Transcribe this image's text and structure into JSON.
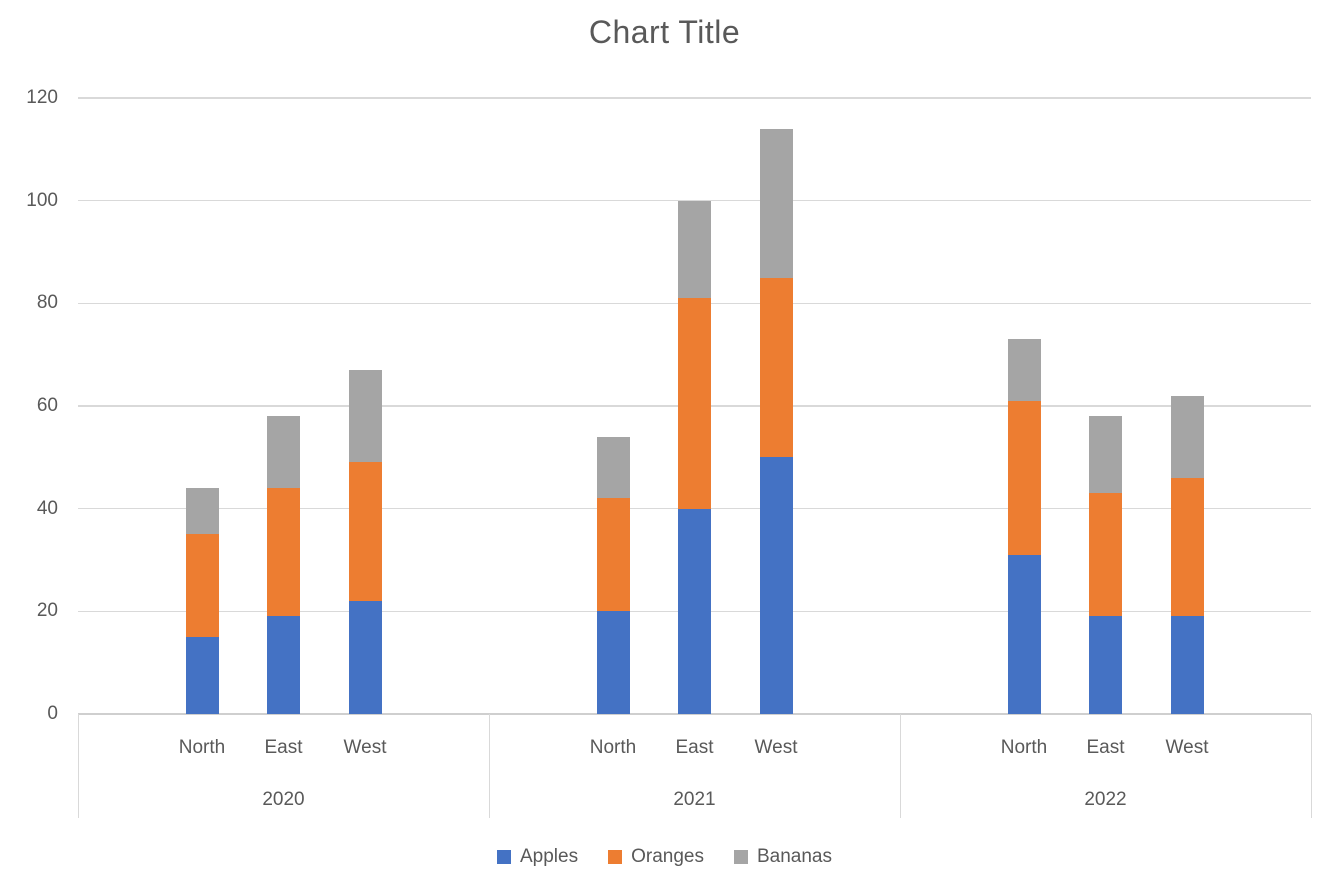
{
  "chart_data": {
    "type": "bar",
    "stacked": true,
    "title": "Chart Title",
    "groups": [
      "2020",
      "2021",
      "2022"
    ],
    "categories": [
      "North",
      "East",
      "West"
    ],
    "series": [
      {
        "name": "Apples",
        "color": "#4472C4",
        "values": [
          [
            15,
            19,
            22
          ],
          [
            20,
            40,
            50
          ],
          [
            31,
            19,
            19
          ]
        ]
      },
      {
        "name": "Oranges",
        "color": "#ED7D31",
        "values": [
          [
            20,
            25,
            27
          ],
          [
            22,
            41,
            35
          ],
          [
            30,
            24,
            27
          ]
        ]
      },
      {
        "name": "Bananas",
        "color": "#A5A5A5",
        "values": [
          [
            9,
            14,
            18
          ],
          [
            12,
            19,
            29
          ],
          [
            12,
            15,
            16
          ]
        ]
      }
    ],
    "stack_totals": [
      [
        44,
        58,
        67
      ],
      [
        54,
        100,
        114
      ],
      [
        73,
        58,
        62
      ]
    ],
    "y_axis": {
      "min": 0,
      "max": 120,
      "step": 20,
      "ticks": [
        "0",
        "20",
        "40",
        "60",
        "80",
        "100",
        "120"
      ]
    },
    "grid": true,
    "legend_position": "bottom",
    "colors": {
      "text": "#595959",
      "gridline": "#D9D9D9",
      "background": "#FFFFFF"
    }
  }
}
